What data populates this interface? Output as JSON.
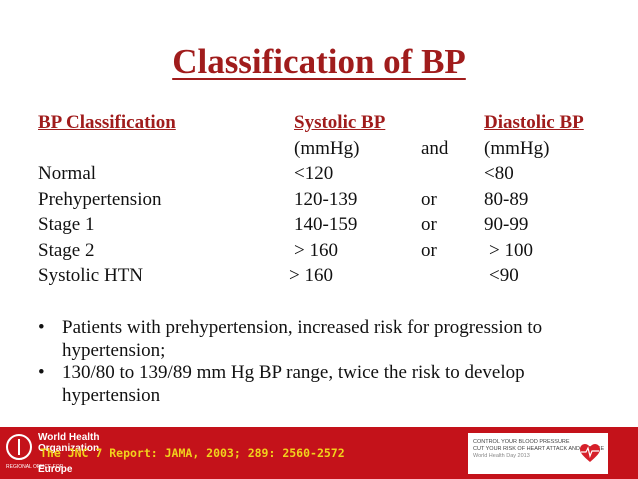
{
  "title": "Classification of BP",
  "table": {
    "header": {
      "classification": "BP Classification",
      "systolic": "Systolic BP",
      "diastolic": "Diastolic BP"
    },
    "units": {
      "systolic": "(mmHg)",
      "conj": "and",
      "diastolic": "(mmHg)"
    },
    "rows": [
      {
        "label": "Normal",
        "systolic": "<120",
        "conj": "",
        "diastolic": "<80"
      },
      {
        "label": "Prehypertension",
        "systolic": "120-139",
        "conj": "or",
        "diastolic": "80-89"
      },
      {
        "label": "Stage 1",
        "systolic": "140-159",
        "conj": "or",
        "diastolic": "90-99"
      },
      {
        "label": "Stage 2",
        "systolic": "> 160",
        "conj": "or",
        "diastolic": "> 100"
      },
      {
        "label": "Systolic HTN",
        "systolic": "> 160",
        "conj": "",
        "diastolic": "<90"
      }
    ]
  },
  "bullets": [
    "Patients with prehypertension, increased risk for progression to hypertension;",
    "130/80 to 139/89 mm Hg BP range, twice the risk to develop hypertension"
  ],
  "footer": {
    "reference": "The JNC 7 Report: JAMA, 2003; 289: 2560-2572",
    "who_line1": "World Health",
    "who_line2": "Organization",
    "who_region": "REGIONAL OFFICE FOR",
    "who_europe": "Europe",
    "campaign_line1": "CONTROL YOUR BLOOD PRESSURE",
    "campaign_line2": "CUT YOUR RISK OF HEART ATTACK AND STROKE",
    "campaign_line3": "World Health Day 2013"
  }
}
